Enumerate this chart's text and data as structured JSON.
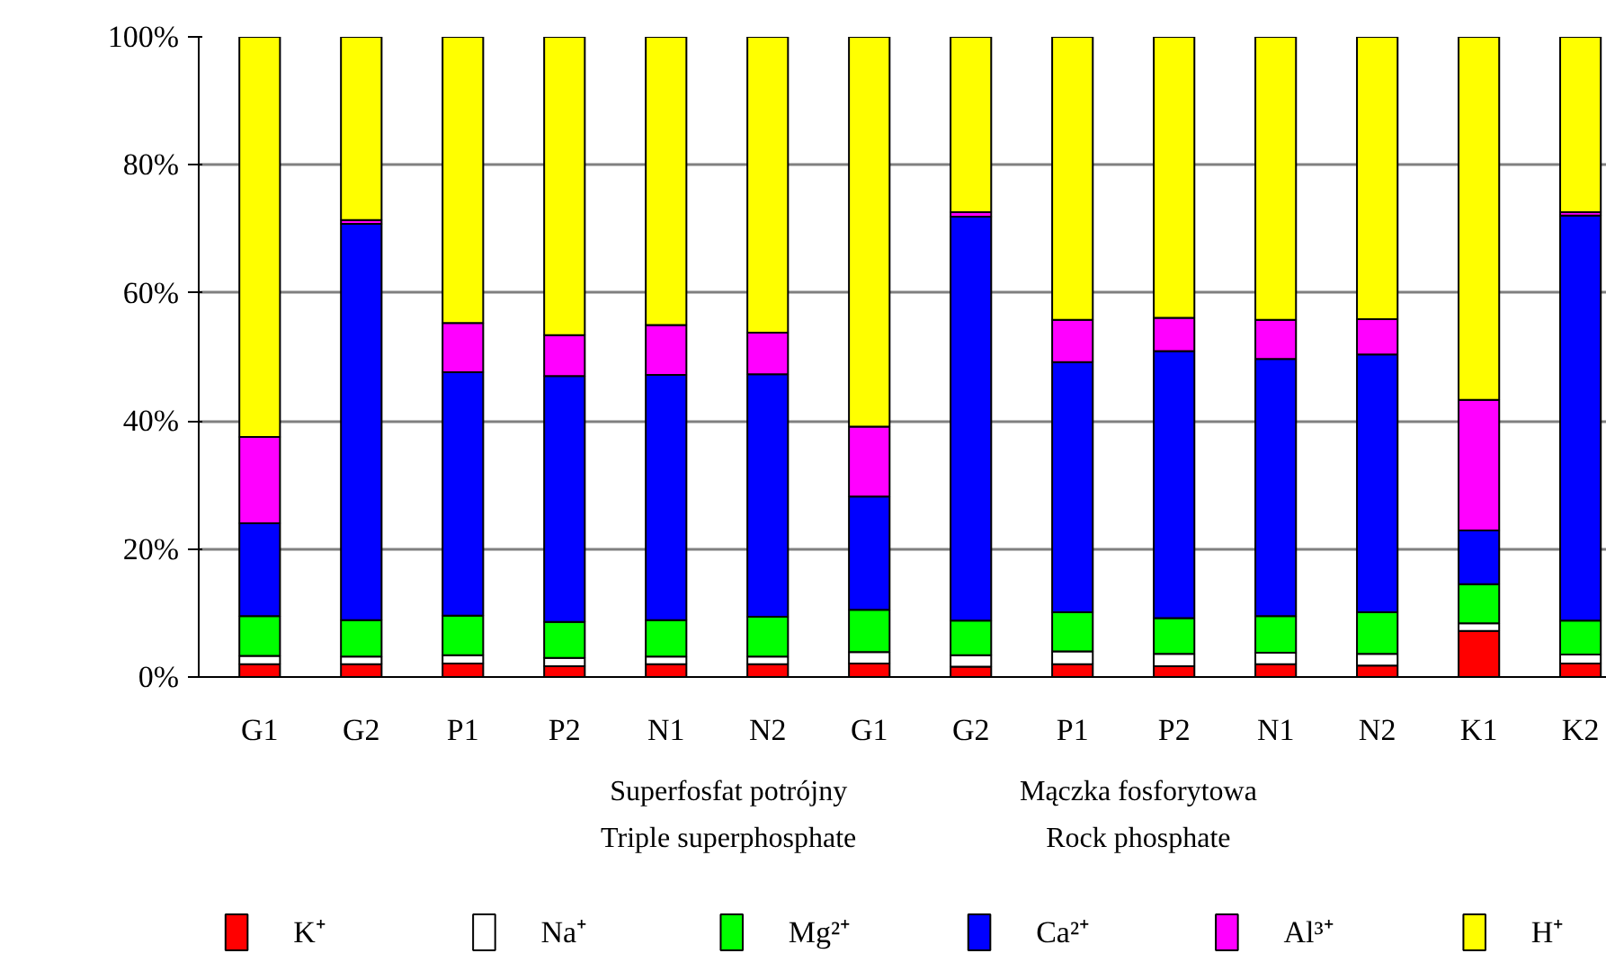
{
  "chart_data": {
    "type": "bar",
    "stacked": true,
    "categories": [
      "G1",
      "G2",
      "P1",
      "P2",
      "N1",
      "N2",
      "G1",
      "G2",
      "P1",
      "P2",
      "N1",
      "N2",
      "K1",
      "K2"
    ],
    "series": [
      {
        "name": "K⁺",
        "color": "#ff0000",
        "values": [
          2,
          2,
          2.1,
          1.7,
          2,
          2,
          2.1,
          1.6,
          2,
          1.7,
          2,
          1.8,
          7.2,
          2.1
        ]
      },
      {
        "name": "Na⁺",
        "color": "#ffffff",
        "values": [
          1.3,
          1.2,
          1.3,
          1.3,
          1.2,
          1.2,
          1.8,
          1.8,
          2,
          1.9,
          1.8,
          1.8,
          1.2,
          1.4
        ]
      },
      {
        "name": "Mg²⁺",
        "color": "#00ff00",
        "values": [
          6.2,
          5.7,
          6.2,
          5.6,
          5.7,
          6.2,
          6.6,
          5.4,
          6.1,
          5.6,
          5.7,
          6.5,
          6.1,
          5.3
        ]
      },
      {
        "name": "Ca²⁺",
        "color": "#0000ff",
        "values": [
          14.5,
          61.9,
          38,
          38.4,
          38.3,
          37.9,
          17.7,
          63.1,
          39.1,
          41.7,
          40.2,
          40.3,
          8.4,
          63.3
        ]
      },
      {
        "name": "Al³⁺",
        "color": "#ff00ff",
        "values": [
          13.5,
          0.6,
          7.7,
          6.4,
          7.8,
          6.5,
          10.9,
          0.7,
          6.6,
          5.2,
          6.1,
          5.5,
          20.4,
          0.5
        ]
      },
      {
        "name": "H⁺",
        "color": "#ffff00",
        "values": [
          62.5,
          28.6,
          44.7,
          46.6,
          45,
          46.2,
          60.9,
          27.4,
          44.2,
          43.9,
          44.2,
          44.1,
          56.7,
          27.4
        ]
      }
    ],
    "ylim": [
      0,
      100
    ],
    "yticks": [
      {
        "value": 0,
        "label": "0%"
      },
      {
        "value": 20,
        "label": "20%"
      },
      {
        "value": 40,
        "label": "40%"
      },
      {
        "value": 60,
        "label": "60%"
      },
      {
        "value": 80,
        "label": "80%"
      },
      {
        "value": 100,
        "label": "100%"
      }
    ],
    "grid": "y",
    "legend": "bottom",
    "annotations": [
      "Superfosfat potrójny\nTriple superphosphate",
      "Mączka fosforytowa\nRock phosphate"
    ]
  }
}
